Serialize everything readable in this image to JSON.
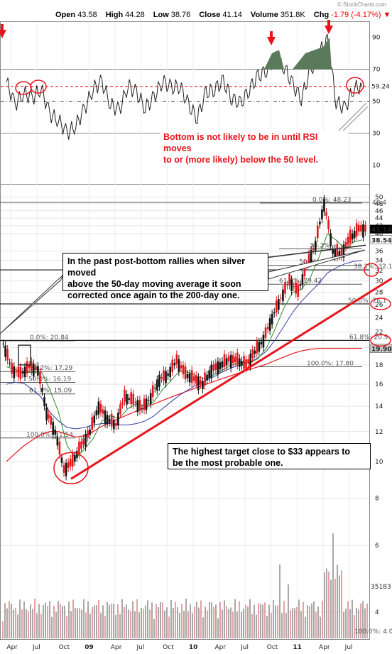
{
  "header": {
    "brand": "© StockCharts.com",
    "open_label": "Open",
    "open": "43.58",
    "high_label": "High",
    "high": "44.28",
    "low_label": "Low",
    "low": "38.76",
    "close_label": "Close",
    "close": "41.14",
    "volume_label": "Volume",
    "volume": "351.8K",
    "chg_label": "Chg",
    "chg": "-1.79 (-4.17%)",
    "chg_arrow": "▼"
  },
  "colors": {
    "up": "#111111",
    "down": "#e8141b",
    "ma50": "#2c8a2c",
    "ma200": "#e8141b",
    "ma_mid": "#2f3fa8",
    "annotation": "#e8141b",
    "rsi_fill": "#5b7a5b",
    "vol_up": "#a8a8a8",
    "vol_down": "#e8a0a0"
  },
  "annotations": {
    "rsi_note_1": "Bottom is not likely to be in until RSI moves",
    "rsi_note_2": "to or (more likely) below the 50 level.",
    "rally_note_1": "In the past post-bottom rallies when silver moved",
    "rally_note_2": "above the 50-day moving average it soon",
    "rally_note_3": "corrected once again to the 200-day one.",
    "target_note_1": "The highest target close to $33 appears to",
    "target_note_2": "be the most probable one."
  },
  "chart_data": [
    {
      "type": "line",
      "name": "RSI",
      "y_ticks": [
        "90",
        "70",
        "50",
        "30",
        "10"
      ],
      "ylim": [
        0,
        100
      ],
      "reference_levels": [
        70,
        50,
        30
      ],
      "last_value_label": "59.24",
      "x_dates": [
        "2008-03",
        "2008-04",
        "2008-05",
        "2008-06",
        "2008-07",
        "2008-08",
        "2008-09",
        "2008-10",
        "2008-11",
        "2008-12",
        "2009-01",
        "2009-02",
        "2009-03",
        "2009-04",
        "2009-05",
        "2009-06",
        "2009-07",
        "2009-08",
        "2009-09",
        "2009-10",
        "2009-11",
        "2009-12",
        "2010-01",
        "2010-02",
        "2010-03",
        "2010-04",
        "2010-05",
        "2010-06",
        "2010-07",
        "2010-08",
        "2010-09",
        "2010-10",
        "2010-11",
        "2010-12",
        "2011-01",
        "2011-02",
        "2011-03",
        "2011-04",
        "2011-05",
        "2011-06",
        "2011-07",
        "2011-08"
      ],
      "values": [
        62,
        48,
        55,
        52,
        58,
        42,
        38,
        30,
        35,
        45,
        58,
        62,
        48,
        44,
        60,
        55,
        46,
        52,
        63,
        58,
        60,
        47,
        40,
        55,
        58,
        62,
        52,
        48,
        58,
        65,
        70,
        76,
        72,
        60,
        52,
        68,
        80,
        88,
        50,
        45,
        58,
        59.24
      ]
    },
    {
      "type": "candlestick",
      "name": "Silver price",
      "y_ticks": [
        "50",
        "48",
        "46",
        "44",
        "42",
        "40",
        "36",
        "34",
        "32",
        "30",
        "28",
        "26",
        "24",
        "22",
        "20",
        "18",
        "16",
        "14",
        "12",
        "10",
        "8",
        "6",
        "4"
      ],
      "ylim": [
        4,
        50
      ],
      "x_tick_labels": [
        "Apr",
        "Jul",
        "Oct",
        "09",
        "Apr",
        "Jul",
        "Oct",
        "10",
        "Apr",
        "Jul",
        "Oct",
        "11",
        "Apr",
        "Jul"
      ],
      "x_dates": [
        "2008-03",
        "2008-04",
        "2008-05",
        "2008-06",
        "2008-07",
        "2008-08",
        "2008-09",
        "2008-10",
        "2008-11",
        "2008-12",
        "2009-01",
        "2009-02",
        "2009-03",
        "2009-04",
        "2009-05",
        "2009-06",
        "2009-07",
        "2009-08",
        "2009-09",
        "2009-10",
        "2009-11",
        "2009-12",
        "2010-01",
        "2010-02",
        "2010-03",
        "2010-04",
        "2010-05",
        "2010-06",
        "2010-07",
        "2010-08",
        "2010-09",
        "2010-10",
        "2010-11",
        "2010-12",
        "2011-01",
        "2011-02",
        "2011-03",
        "2011-04",
        "2011-05",
        "2011-06",
        "2011-07",
        "2011-08"
      ],
      "close": [
        20.5,
        17.5,
        17.0,
        17.8,
        17.5,
        13.5,
        12.0,
        9.5,
        10.0,
        11.0,
        12.0,
        14.0,
        13.0,
        12.5,
        14.8,
        14.5,
        13.8,
        14.8,
        16.5,
        17.0,
        18.5,
        17.0,
        16.5,
        16.0,
        17.5,
        18.0,
        18.6,
        18.5,
        18.0,
        19.5,
        21.0,
        24.0,
        27.0,
        30.0,
        28.0,
        33.0,
        37.5,
        48.0,
        36.0,
        35.5,
        39.0,
        41.14
      ],
      "ma50": [
        17.8,
        17.5,
        17.2,
        17.2,
        17.3,
        15.5,
        13.5,
        11.0,
        10.2,
        10.8,
        11.5,
        12.8,
        13.2,
        13.0,
        13.8,
        14.2,
        14.0,
        14.4,
        15.5,
        16.4,
        17.4,
        17.2,
        16.8,
        16.5,
        17.0,
        17.5,
        18.0,
        18.3,
        18.2,
        18.7,
        20.0,
        22.5,
        25.5,
        28.0,
        28.5,
        30.5,
        34.5,
        40.0,
        38.5,
        36.5,
        38.0,
        38.54
      ],
      "ma200": [
        10.0,
        10.5,
        11.0,
        11.4,
        11.8,
        12.0,
        12.0,
        11.8,
        11.6,
        11.7,
        12.0,
        12.4,
        12.7,
        13.0,
        13.3,
        13.6,
        13.9,
        14.2,
        14.5,
        14.8,
        15.1,
        15.4,
        15.7,
        16.0,
        16.3,
        16.6,
        16.9,
        17.2,
        17.5,
        17.8,
        18.1,
        18.5,
        18.9,
        19.3,
        19.6,
        19.8,
        19.9,
        19.9,
        19.9,
        19.9,
        19.9,
        19.9
      ],
      "ma_mid": [
        16.0,
        16.2,
        16.1,
        15.5,
        14.8,
        13.5,
        12.8,
        12.3,
        12.2,
        12.3,
        12.5,
        12.6,
        12.6,
        12.5,
        12.5,
        12.6,
        12.8,
        13.2,
        13.8,
        14.4,
        15.0,
        15.5,
        16.0,
        16.4,
        16.8,
        17.3,
        17.7,
        18.0,
        18.3,
        18.8,
        19.6,
        21.0,
        22.8,
        24.8,
        26.5,
        28.0,
        29.5,
        31.5,
        32.5,
        33.3,
        33.8,
        34.0
      ],
      "price_labels": [
        "41.14",
        "38.54",
        "32.1",
        "26.1",
        "20.9",
        "19.90",
        "48.4"
      ],
      "fibonacci_a": {
        "levels": [
          "0.0%: 48.23",
          "38.2%",
          "50.0%",
          "61.8%: 29.42",
          "100.0%: 17.80"
        ]
      },
      "fibonacci_b": {
        "levels": [
          "0.0%: 20.84",
          "38.2%: 17.29",
          "50.0%: 16.19",
          "61.8%: 15.09",
          "100.0%: 11.54"
        ]
      },
      "fibonacci_c": {
        "levels": [
          "38.2%: 32.1",
          "50.0%: 26.1",
          "61.8%: 20.9"
        ]
      }
    },
    {
      "type": "bar",
      "name": "Volume",
      "last_value_label": "35183",
      "y_ticks": [
        "8",
        "6",
        "4"
      ],
      "scale_label": "100.0%: 4.0"
    }
  ]
}
